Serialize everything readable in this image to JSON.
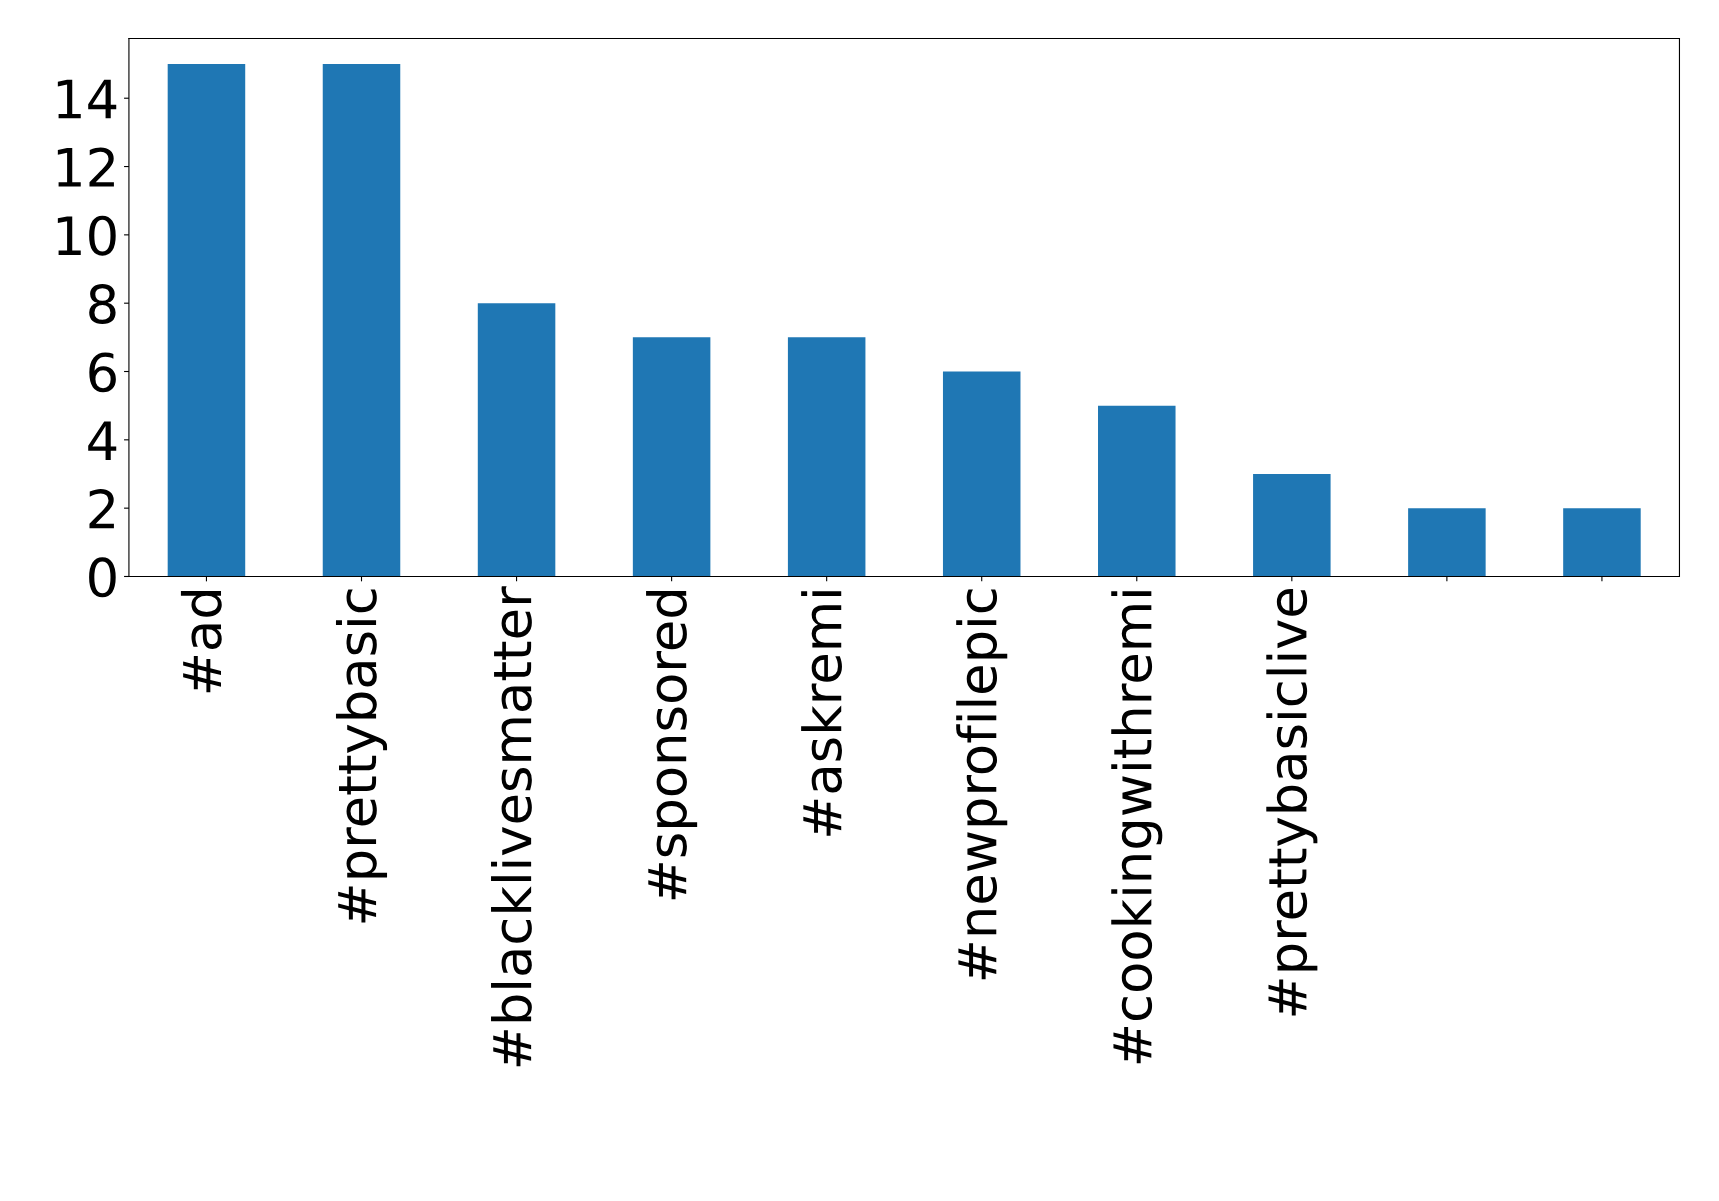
{
  "chart_data": {
    "type": "bar",
    "categories": [
      "#ad",
      "#prettybasic",
      "#blacklivesmatter",
      "#sponsored",
      "#askremi",
      "#newprofilepic",
      "#cookingwithremi",
      "#prettybasiclive",
      null,
      null
    ],
    "values": [
      15,
      15,
      8,
      7,
      7,
      6,
      5,
      3,
      2,
      2
    ],
    "color": "#1f77b4",
    "ylim": [
      0,
      15.75
    ],
    "yticks": [
      0,
      2,
      4,
      6,
      8,
      10,
      12,
      14
    ],
    "grid": false,
    "legend": false
  }
}
